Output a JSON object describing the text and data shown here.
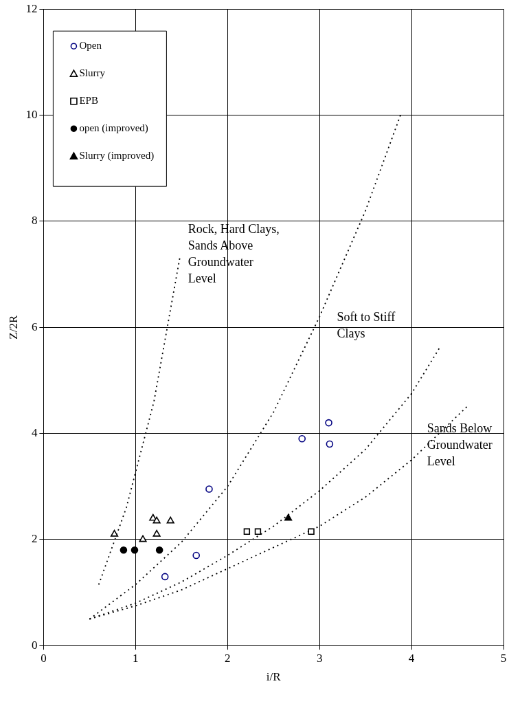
{
  "chart_data": {
    "type": "scatter",
    "xlabel": "i/R",
    "ylabel": "Z/2R",
    "xlim": [
      0,
      5
    ],
    "ylim": [
      0,
      12
    ],
    "xticks": [
      0,
      1,
      2,
      3,
      4,
      5
    ],
    "yticks": [
      0,
      2,
      4,
      6,
      8,
      10,
      12
    ],
    "grid": true,
    "legend": "top left",
    "series": [
      {
        "name": "Open",
        "color": "#000080",
        "marker": "circle",
        "x": [
          1.32,
          1.66,
          1.8,
          2.81,
          3.1,
          3.11
        ],
        "values": [
          1.3,
          1.7,
          2.95,
          3.9,
          4.2,
          3.8
        ]
      },
      {
        "name": "Slurry",
        "color": "#000000",
        "marker": "triangle",
        "x": [
          0.77,
          1.19,
          1.23,
          1.38,
          1.08,
          1.23
        ],
        "values": [
          2.1,
          2.4,
          2.35,
          2.35,
          2.0,
          2.1
        ]
      },
      {
        "name": "EPB",
        "color": "#000000",
        "marker": "square",
        "x": [
          2.21,
          2.33,
          2.91
        ],
        "values": [
          2.15,
          2.15,
          2.15
        ]
      },
      {
        "name": "open (improved)",
        "color": "#000000",
        "marker": "circle",
        "colors": [
          "#000000",
          "#000000",
          "#000000"
        ],
        "x": [
          0.87,
          0.99,
          1.26
        ],
        "values": [
          1.8,
          1.8,
          1.8
        ]
      },
      {
        "name": "Slurry (improved)",
        "color": "#000000",
        "marker": "triangle",
        "colors": [
          "#000000"
        ],
        "x": [
          2.66
        ],
        "values": [
          2.4
        ]
      },
      {
        "type": "line",
        "color": "#000000",
        "marker": "none",
        "line_style": "dotted",
        "x": [
          0.6,
          0.9,
          1.2,
          1.48
        ],
        "values": [
          1.15,
          2.6,
          4.6,
          7.3
        ]
      },
      {
        "type": "line",
        "color": "#000000",
        "marker": "none",
        "line_style": "dotted",
        "x": [
          0.5,
          1.0,
          1.5,
          2.0,
          2.5,
          3.0,
          3.5,
          3.88
        ],
        "values": [
          0.5,
          1.15,
          1.95,
          3.0,
          4.4,
          6.2,
          8.2,
          10
        ]
      },
      {
        "type": "line",
        "color": "#000000",
        "marker": "none",
        "line_style": "dotted",
        "x": [
          0.5,
          1,
          1.5,
          2,
          2.5,
          3,
          3.5,
          4,
          4.3
        ],
        "values": [
          0.5,
          0.8,
          1.2,
          1.7,
          2.25,
          2.92,
          3.7,
          4.75,
          5.6
        ]
      },
      {
        "type": "line",
        "color": "#000000",
        "marker": "none",
        "line_style": "dotted",
        "x": [
          0.5,
          1,
          1.5,
          2,
          2.5,
          3,
          3.5,
          4,
          4.6
        ],
        "values": [
          0.5,
          0.75,
          1.05,
          1.45,
          1.85,
          2.25,
          2.8,
          3.5,
          4.5
        ]
      }
    ],
    "annotations": [
      "Rock, Hard Clays,\nSands Above\nGroundwater\nLevel",
      "Soft to Stiff\nClays",
      "Sands Below\nGroundwater\nLevel"
    ]
  }
}
